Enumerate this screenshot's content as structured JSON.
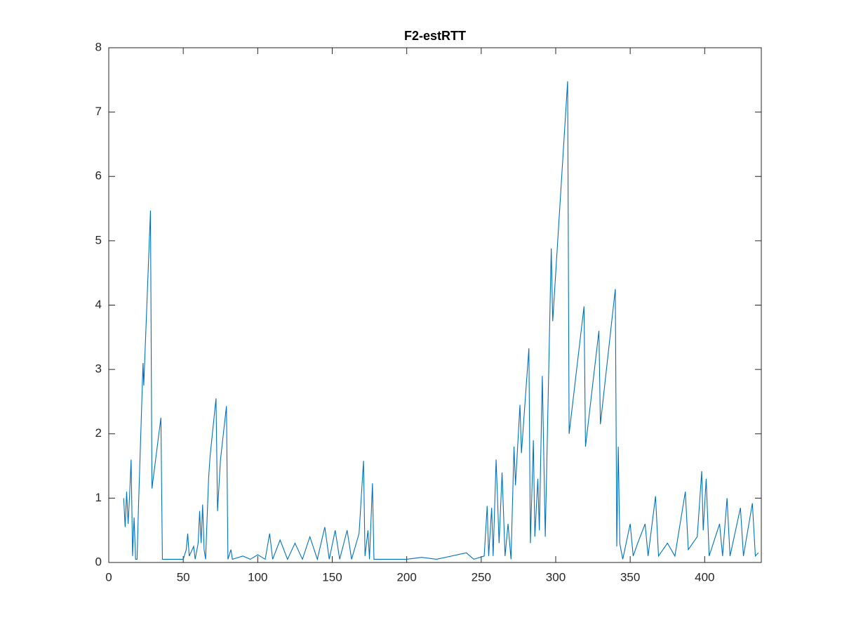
{
  "chart_data": {
    "type": "line",
    "title": "F2-estRTT",
    "x": [
      10,
      11,
      12,
      13,
      14,
      15,
      16,
      17,
      18,
      19,
      20,
      23,
      23.5,
      28,
      29,
      35,
      36,
      50,
      52,
      53,
      54,
      57,
      58,
      60,
      61,
      62,
      63,
      64,
      65,
      67,
      68,
      72,
      73,
      75,
      79,
      80,
      82,
      83,
      90,
      95,
      100,
      105,
      108,
      110,
      115,
      120,
      125,
      130,
      135,
      140,
      145,
      148,
      152,
      155,
      160,
      163,
      168,
      171,
      172,
      174,
      175,
      177,
      178,
      200,
      210,
      220,
      240,
      245,
      252,
      254,
      255,
      257,
      258,
      260,
      262,
      264,
      266,
      268,
      270,
      272,
      273,
      276,
      277,
      282,
      283,
      285,
      286,
      288,
      289,
      291,
      293,
      297,
      298,
      308,
      309,
      319,
      320,
      329,
      330,
      340,
      341,
      342,
      343,
      345,
      350,
      352,
      355,
      360,
      362,
      367,
      369,
      375,
      380,
      387,
      389,
      395,
      398,
      399,
      401,
      403,
      410,
      412,
      415,
      417,
      424,
      426,
      432,
      434,
      436
    ],
    "series": [
      {
        "name": "F2-estRTT",
        "color": "#0072bd",
        "values": [
          1.0,
          0.55,
          1.1,
          0.6,
          1.05,
          1.6,
          0.1,
          0.7,
          0.05,
          0.05,
          0.9,
          3.1,
          2.75,
          5.47,
          1.15,
          2.25,
          0.05,
          0.05,
          0.2,
          0.45,
          0.1,
          0.25,
          0.05,
          0.3,
          0.8,
          0.3,
          0.9,
          0.2,
          0.05,
          1.3,
          1.65,
          2.55,
          0.8,
          1.6,
          2.43,
          0.05,
          0.2,
          0.05,
          0.1,
          0.05,
          0.12,
          0.05,
          0.45,
          0.05,
          0.35,
          0.05,
          0.3,
          0.05,
          0.4,
          0.05,
          0.55,
          0.05,
          0.5,
          0.05,
          0.5,
          0.05,
          0.45,
          1.58,
          0.1,
          0.5,
          0.05,
          1.23,
          0.05,
          0.05,
          0.08,
          0.05,
          0.15,
          0.05,
          0.1,
          0.88,
          0.1,
          0.85,
          0.1,
          1.6,
          0.3,
          1.4,
          0.1,
          0.6,
          0.05,
          1.8,
          1.2,
          2.45,
          1.7,
          3.33,
          0.3,
          1.9,
          0.4,
          1.3,
          0.5,
          2.9,
          0.4,
          4.88,
          3.75,
          7.48,
          2.0,
          3.98,
          1.8,
          3.6,
          2.15,
          4.25,
          0.25,
          1.8,
          0.3,
          0.05,
          0.6,
          0.1,
          0.3,
          0.6,
          0.1,
          1.03,
          0.1,
          0.3,
          0.1,
          1.1,
          0.2,
          0.4,
          1.42,
          0.5,
          1.3,
          0.1,
          0.6,
          0.1,
          1.0,
          0.1,
          0.85,
          0.1,
          0.92,
          0.1,
          0.15
        ]
      }
    ],
    "xlim": [
      0,
      438
    ],
    "xticks": [
      0,
      50,
      100,
      150,
      200,
      250,
      300,
      350,
      400
    ],
    "ylim": [
      0,
      8
    ],
    "yticks": [
      0,
      1,
      2,
      3,
      4,
      5,
      6,
      7,
      8
    ]
  }
}
